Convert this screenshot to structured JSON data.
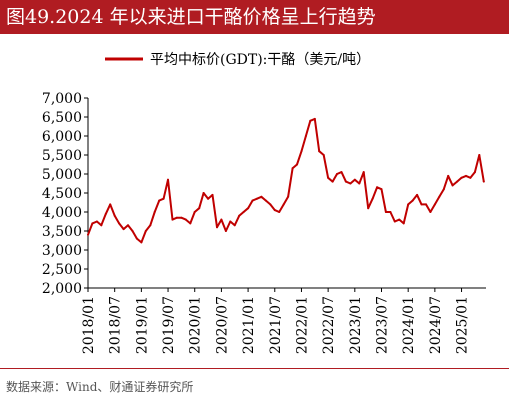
{
  "header": {
    "title": "图49.2024 年以来进口干酪价格呈上行趋势"
  },
  "footer": {
    "source": "数据来源：Wind、财通证券研究所"
  },
  "colors": {
    "brand": "#b01c22",
    "series": "#c00000"
  },
  "chart_data": {
    "type": "line",
    "title": "",
    "xlabel": "",
    "ylabel": "",
    "ylim": [
      2000,
      7000
    ],
    "y_ticks": [
      "2,000",
      "2,500",
      "3,000",
      "3,500",
      "4,000",
      "4,500",
      "5,000",
      "5,500",
      "6,000",
      "6,500",
      "7,000"
    ],
    "y_tick_values": [
      2000,
      2500,
      3000,
      3500,
      4000,
      4500,
      5000,
      5500,
      6000,
      6500,
      7000
    ],
    "x_ticks": [
      "2018/01",
      "2018/07",
      "2019/01",
      "2019/07",
      "2020/01",
      "2020/07",
      "2021/01",
      "2021/07",
      "2022/01",
      "2022/07",
      "2023/01",
      "2023/07",
      "2024/01",
      "2024/07",
      "2025/01"
    ],
    "x_range": [
      "2018/01",
      "2025/06"
    ],
    "grid": false,
    "legend": "top-center",
    "series": [
      {
        "name": "平均中标价(GDT):干酪（美元/吨）",
        "color": "#c00000",
        "points": [
          [
            "2018/01",
            3400
          ],
          [
            "2018/02",
            3700
          ],
          [
            "2018/03",
            3750
          ],
          [
            "2018/04",
            3650
          ],
          [
            "2018/05",
            3950
          ],
          [
            "2018/06",
            4200
          ],
          [
            "2018/07",
            3900
          ],
          [
            "2018/08",
            3700
          ],
          [
            "2018/09",
            3550
          ],
          [
            "2018/10",
            3650
          ],
          [
            "2018/11",
            3500
          ],
          [
            "2018/12",
            3300
          ],
          [
            "2019/01",
            3200
          ],
          [
            "2019/02",
            3500
          ],
          [
            "2019/03",
            3650
          ],
          [
            "2019/04",
            4000
          ],
          [
            "2019/05",
            4300
          ],
          [
            "2019/06",
            4350
          ],
          [
            "2019/07",
            4850
          ],
          [
            "2019/08",
            3800
          ],
          [
            "2019/09",
            3850
          ],
          [
            "2019/10",
            3850
          ],
          [
            "2019/11",
            3800
          ],
          [
            "2019/12",
            3700
          ],
          [
            "2020/01",
            4000
          ],
          [
            "2020/02",
            4100
          ],
          [
            "2020/03",
            4500
          ],
          [
            "2020/04",
            4350
          ],
          [
            "2020/05",
            4450
          ],
          [
            "2020/06",
            3600
          ],
          [
            "2020/07",
            3800
          ],
          [
            "2020/08",
            3500
          ],
          [
            "2020/09",
            3750
          ],
          [
            "2020/10",
            3650
          ],
          [
            "2020/11",
            3900
          ],
          [
            "2020/12",
            4000
          ],
          [
            "2021/01",
            4100
          ],
          [
            "2021/02",
            4300
          ],
          [
            "2021/03",
            4350
          ],
          [
            "2021/04",
            4400
          ],
          [
            "2021/05",
            4300
          ],
          [
            "2021/06",
            4200
          ],
          [
            "2021/07",
            4050
          ],
          [
            "2021/08",
            4000
          ],
          [
            "2021/09",
            4200
          ],
          [
            "2021/10",
            4400
          ],
          [
            "2021/11",
            5150
          ],
          [
            "2021/12",
            5250
          ],
          [
            "2022/01",
            5600
          ],
          [
            "2022/02",
            6000
          ],
          [
            "2022/03",
            6400
          ],
          [
            "2022/04",
            6450
          ],
          [
            "2022/05",
            5600
          ],
          [
            "2022/06",
            5500
          ],
          [
            "2022/07",
            4900
          ],
          [
            "2022/08",
            4800
          ],
          [
            "2022/09",
            5000
          ],
          [
            "2022/10",
            5050
          ],
          [
            "2022/11",
            4800
          ],
          [
            "2022/12",
            4750
          ],
          [
            "2023/01",
            4850
          ],
          [
            "2023/02",
            4750
          ],
          [
            "2023/03",
            5050
          ],
          [
            "2023/04",
            4100
          ],
          [
            "2023/05",
            4350
          ],
          [
            "2023/06",
            4650
          ],
          [
            "2023/07",
            4600
          ],
          [
            "2023/08",
            4000
          ],
          [
            "2023/09",
            4000
          ],
          [
            "2023/10",
            3750
          ],
          [
            "2023/11",
            3800
          ],
          [
            "2023/12",
            3700
          ],
          [
            "2024/01",
            4200
          ],
          [
            "2024/02",
            4300
          ],
          [
            "2024/03",
            4450
          ],
          [
            "2024/04",
            4200
          ],
          [
            "2024/05",
            4200
          ],
          [
            "2024/06",
            4000
          ],
          [
            "2024/07",
            4200
          ],
          [
            "2024/08",
            4400
          ],
          [
            "2024/09",
            4600
          ],
          [
            "2024/10",
            4950
          ],
          [
            "2024/11",
            4700
          ],
          [
            "2024/12",
            4800
          ],
          [
            "2025/01",
            4900
          ],
          [
            "2025/02",
            4950
          ],
          [
            "2025/03",
            4900
          ],
          [
            "2025/04",
            5050
          ],
          [
            "2025/05",
            5500
          ],
          [
            "2025/06",
            4800
          ]
        ]
      }
    ]
  }
}
